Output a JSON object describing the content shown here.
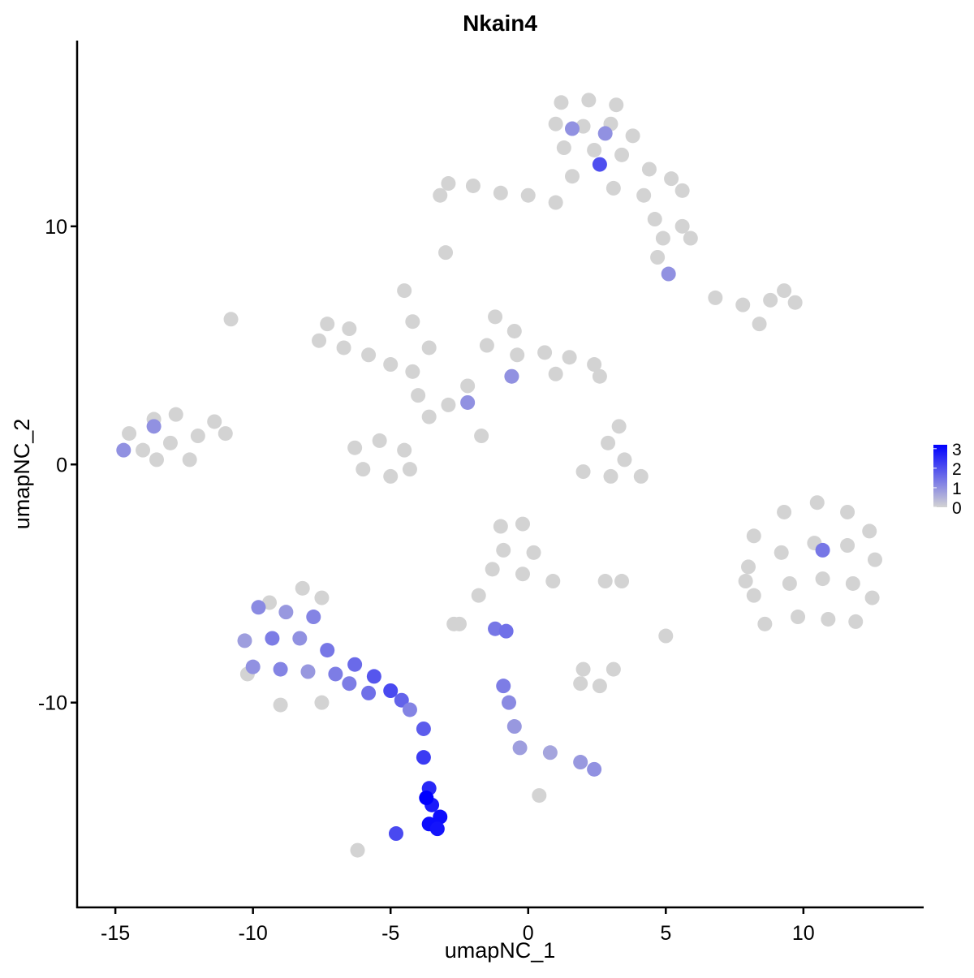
{
  "chart_data": {
    "type": "scatter",
    "title": "Nkain4",
    "xlabel": "umapNC_1",
    "ylabel": "umapNC_2",
    "xlim": [
      -16.39,
      14.37
    ],
    "ylim": [
      -18.6,
      17.8
    ],
    "xticks": [
      -15,
      -10,
      -5,
      0,
      5,
      10
    ],
    "yticks": [
      -10,
      0,
      10
    ],
    "x": [
      1.2,
      2.2,
      3.2,
      1.0,
      2.0,
      3.0,
      3.8,
      1.3,
      2.4,
      3.4,
      4.4,
      5.2,
      5.6,
      4.2,
      3.1,
      1.6,
      1.0,
      0.0,
      -1.0,
      -2.0,
      -2.9,
      -3.2,
      4.6,
      5.6,
      5.9,
      4.9,
      4.7,
      -3.0,
      -7.3,
      -6.5,
      -7.6,
      -6.7,
      -5.8,
      -5.0,
      -4.2,
      -3.6,
      -4.5,
      -4.2,
      -10.8,
      -1.2,
      -0.5,
      -1.5,
      -0.4,
      0.6,
      1.5,
      2.4,
      2.6,
      1.0,
      -0.6,
      -2.2,
      -2.9,
      -1.7,
      -6.3,
      -5.4,
      -4.5,
      -6.0,
      -5.0,
      -4.3,
      -3.6,
      -4.0,
      -14.5,
      -13.6,
      -12.8,
      -14.0,
      -13.0,
      -12.0,
      -11.4,
      -11.0,
      -12.3,
      -13.5,
      8.2,
      9.3,
      10.5,
      11.6,
      12.4,
      8.0,
      9.2,
      10.4,
      11.6,
      12.6,
      8.2,
      9.5,
      10.7,
      11.8,
      12.5,
      8.6,
      9.8,
      10.9,
      11.9,
      7.9,
      2.9,
      3.5,
      4.1,
      3.0,
      2.0,
      3.3,
      6.8,
      7.8,
      8.8,
      9.7,
      9.3,
      8.4,
      -1.0,
      -0.2,
      -0.9,
      0.2,
      -1.3,
      -0.2,
      0.9,
      -1.8,
      -2.5,
      2.8,
      3.4,
      1.9,
      2.6,
      3.1,
      2.0,
      -2.7,
      5.0,
      -10.2,
      -9.0,
      -7.5,
      -9.4,
      -8.2,
      -7.5,
      -6.2,
      0.4,
      -9.8,
      -8.8,
      -7.8,
      -10.3,
      -9.3,
      -8.3,
      -7.3,
      -10.0,
      -9.0,
      -8.0,
      -7.0,
      -6.3,
      -5.6,
      -5.0,
      -4.6,
      -5.8,
      -6.5,
      -4.3,
      -3.8,
      -3.8,
      -3.6,
      -3.5,
      -3.2,
      -3.6,
      -3.3,
      -3.7,
      -4.8,
      -0.9,
      -0.7,
      -0.5,
      -0.3,
      0.8,
      1.9,
      2.4,
      -1.2,
      -0.8,
      1.6,
      2.8,
      2.6,
      5.1,
      10.7,
      -2.2,
      -0.6,
      -13.6,
      -14.7
    ],
    "values": [
      15.2,
      15.3,
      15.1,
      14.3,
      14.2,
      14.3,
      13.8,
      13.3,
      13.2,
      13.0,
      12.4,
      12.0,
      11.5,
      11.3,
      11.6,
      12.1,
      11.0,
      11.3,
      11.4,
      11.7,
      11.8,
      11.3,
      10.3,
      10.0,
      9.5,
      9.5,
      8.7,
      8.9,
      5.9,
      5.7,
      5.2,
      4.9,
      4.6,
      4.2,
      3.9,
      4.9,
      7.3,
      6.0,
      6.1,
      6.2,
      5.6,
      5.0,
      4.6,
      4.7,
      4.5,
      4.2,
      3.7,
      3.8,
      3.7,
      3.3,
      2.5,
      1.2,
      0.7,
      1.0,
      0.6,
      -0.2,
      -0.5,
      -0.2,
      2.0,
      2.9,
      1.3,
      1.9,
      2.1,
      0.6,
      0.9,
      1.2,
      1.8,
      1.3,
      0.2,
      0.2,
      -3.0,
      -2.0,
      -1.6,
      -2.0,
      -2.8,
      -4.3,
      -3.7,
      -3.3,
      -3.4,
      -4.0,
      -5.5,
      -5.0,
      -4.8,
      -5.0,
      -5.6,
      -6.7,
      -6.4,
      -6.5,
      -6.6,
      -4.9,
      0.9,
      0.2,
      -0.5,
      -0.5,
      -0.3,
      1.6,
      7.0,
      6.7,
      6.9,
      6.8,
      7.3,
      5.9,
      -2.6,
      -2.5,
      -3.6,
      -3.7,
      -4.4,
      -4.6,
      -4.9,
      -5.5,
      -6.7,
      -4.9,
      -4.9,
      -9.2,
      -9.3,
      -8.6,
      -8.6,
      -6.7,
      -7.2,
      -8.8,
      -10.1,
      -10.0,
      -5.8,
      -5.2,
      -5.6,
      -16.2,
      -13.9,
      -6.0,
      -6.2,
      -6.4,
      -7.4,
      -7.3,
      -7.3,
      -7.8,
      -8.5,
      -8.6,
      -8.7,
      -8.8,
      -8.4,
      -8.9,
      -9.5,
      -9.9,
      -9.6,
      -9.2,
      -10.3,
      -11.1,
      -12.3,
      -13.6,
      -14.3,
      -14.8,
      -15.1,
      -15.3,
      -14.0,
      -15.5,
      -9.3,
      -10.0,
      -11.0,
      -11.9,
      -12.1,
      -12.5,
      -12.8,
      -6.9,
      -7.0,
      14.1,
      13.9,
      12.6,
      8.0,
      -3.6,
      2.6,
      3.7,
      1.6,
      0.6
    ],
    "expression": [
      0,
      0,
      0,
      0,
      0,
      0,
      0,
      0,
      0,
      0,
      0,
      0,
      0,
      0,
      0,
      0,
      0,
      0,
      0,
      0,
      0,
      0,
      0,
      0,
      0,
      0,
      0,
      0,
      0,
      0,
      0,
      0,
      0,
      0,
      0,
      0,
      0,
      0,
      0,
      0,
      0,
      0,
      0,
      0,
      0,
      0,
      0,
      0,
      0,
      0,
      0,
      0,
      0,
      0,
      0,
      0,
      0,
      0,
      0,
      0,
      0,
      0,
      0,
      0,
      0,
      0,
      0,
      0,
      0,
      0,
      0,
      0,
      0,
      0,
      0,
      0,
      0,
      0,
      0,
      0,
      0,
      0,
      0,
      0,
      0,
      0,
      0,
      0,
      0,
      0,
      0,
      0,
      0,
      0,
      0,
      0,
      0,
      0,
      0,
      0,
      0,
      0,
      0,
      0,
      0,
      0,
      0,
      0,
      0,
      0,
      0,
      0,
      0,
      0,
      0,
      0,
      0,
      0,
      0,
      0,
      0,
      0,
      0,
      0,
      0,
      0,
      0,
      1.1,
      0.9,
      1.2,
      0.8,
      1.3,
      1.0,
      1.4,
      1.0,
      1.2,
      0.9,
      1.3,
      1.6,
      1.9,
      2.1,
      1.7,
      1.5,
      1.3,
      1.2,
      1.8,
      2.3,
      2.6,
      2.8,
      3.0,
      3.0,
      2.9,
      3.2,
      2.1,
      1.3,
      1.1,
      0.9,
      0.8,
      0.7,
      0.9,
      1.0,
      1.4,
      1.5,
      1,
      1,
      2,
      1,
      1.4,
      1,
      1,
      1,
      1
    ],
    "colorbar": {
      "lim": [
        0,
        3.2
      ],
      "ticks": [
        0,
        1,
        2,
        3
      ],
      "low": "#d3d3d3",
      "high": "#0000ff"
    }
  }
}
